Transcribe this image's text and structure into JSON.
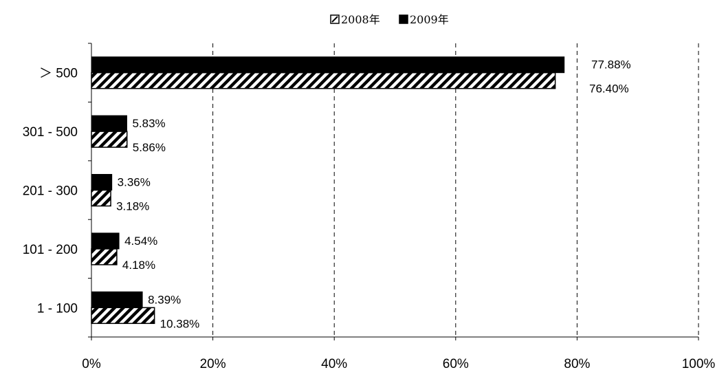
{
  "chart_data": {
    "type": "bar",
    "orientation": "horizontal",
    "categories": [
      "＞ 500",
      "301 - 500",
      "201 - 300",
      "101 - 200",
      "1 - 100"
    ],
    "series": [
      {
        "name": "2009年",
        "color": "#000000",
        "pattern": "solid",
        "values": [
          77.88,
          5.83,
          3.36,
          4.54,
          8.39
        ],
        "labels": [
          "77.88%",
          "5.83%",
          "3.36%",
          "4.54%",
          "8.39%"
        ]
      },
      {
        "name": "2008年",
        "color": "#000000",
        "pattern": "diagonal-hatch",
        "values": [
          76.4,
          5.86,
          3.18,
          4.18,
          10.38
        ],
        "labels": [
          "76.40%",
          "5.86%",
          "3.18%",
          "4.18%",
          "10.38%"
        ]
      }
    ],
    "legend_order": [
      "2008年",
      "2009年"
    ],
    "xlim": [
      0,
      100
    ],
    "xticks": [
      "0%",
      "20%",
      "40%",
      "60%",
      "80%",
      "100%"
    ],
    "grid": "vertical-dashed",
    "legend_position": "top-center",
    "title": "",
    "xlabel": "",
    "ylabel": ""
  }
}
